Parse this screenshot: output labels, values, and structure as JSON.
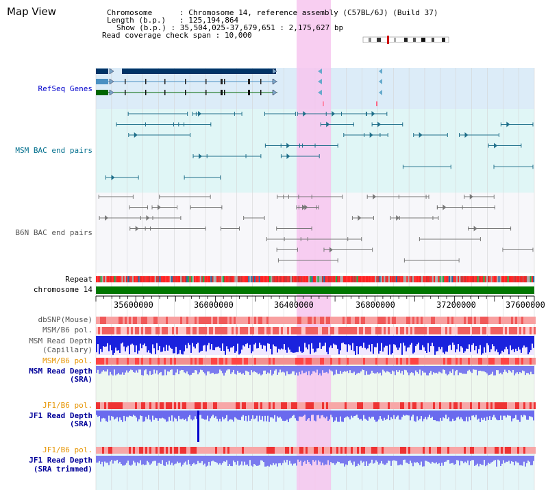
{
  "title": "Map View",
  "info": {
    "chromosome": {
      "label": "Chromosome",
      "value": "Chromosome 14, reference assembly (C57BL/6J) (Build 37)"
    },
    "length": {
      "label": "Length (b.p.)",
      "value": "125,194,864"
    },
    "show": {
      "label": "Show (b.p.)",
      "value": "35,504,025-37,679,651 : 2,175,627 bp"
    },
    "span": {
      "label": "Read coverage check span",
      "value": "10,000"
    }
  },
  "tracks": {
    "refseq": "RefSeq Genes",
    "msm_bac": "MSM BAC end pairs",
    "b6n_bac": "B6N BAC end pairs",
    "repeat": "Repeat",
    "chromosome": "chromosome 14",
    "dbsnp": "dbSNP(Mouse)",
    "msm_b6_pol_1": "MSM/B6 pol.",
    "msm_depth_cap_1": "MSM Read Depth",
    "msm_depth_cap_2": "(Capillary)",
    "msm_b6_pol_2": "MSM/B6 pol.",
    "msm_depth_sra_1": "MSM Read Depth",
    "msm_depth_sra_2": "(SRA)",
    "jf1_b6_pol_1": "JF1/B6 pol.",
    "jf1_depth_sra_1": "JF1 Read Depth",
    "jf1_depth_sra_2": "(SRA)",
    "jf1_b6_pol_2": "JF1/B6 pol.",
    "jf1_depth_trim_1": "JF1 Read Depth",
    "jf1_depth_trim_2": "(SRA trimmed)"
  },
  "axis": {
    "view_start": 35504025,
    "view_end": 37679651,
    "ticks": [
      "35600000",
      "36000000",
      "36400000",
      "36800000",
      "37200000",
      "37600000"
    ]
  },
  "highlight": {
    "start": 36500000,
    "end": 36670000
  },
  "colors": {
    "refseq_label": "#0000cc",
    "msm_label": "#006e8c",
    "b6n_label": "#555555",
    "pol_label": "#e69400",
    "depth_label": "#000099",
    "depth_fill": "#0000dd",
    "sra_fill": "#7070ee",
    "chromosome_bar": "#007700",
    "highlight": "#f7c6ef"
  }
}
